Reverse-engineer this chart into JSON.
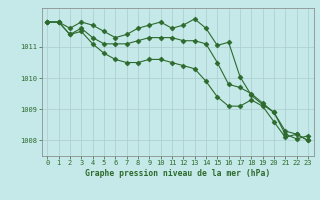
{
  "xlabel": "Graphe pression niveau de la mer (hPa)",
  "x": [
    0,
    1,
    2,
    3,
    4,
    5,
    6,
    7,
    8,
    9,
    10,
    11,
    12,
    13,
    14,
    15,
    16,
    17,
    18,
    19,
    20,
    21,
    22,
    23
  ],
  "line1": [
    1011.8,
    1011.8,
    1011.6,
    1011.8,
    1011.7,
    1011.5,
    1011.3,
    1011.4,
    1011.6,
    1011.7,
    1011.8,
    1011.6,
    1011.7,
    1011.9,
    1011.6,
    1011.05,
    1011.15,
    1010.05,
    1009.45,
    1009.15,
    1008.9,
    1008.2,
    1008.05,
    1008.15
  ],
  "line2": [
    1011.8,
    1011.8,
    1011.4,
    1011.6,
    1011.3,
    1011.1,
    1011.1,
    1011.1,
    1011.2,
    1011.3,
    1011.3,
    1011.3,
    1011.2,
    1011.2,
    1011.1,
    1010.5,
    1009.8,
    1009.7,
    1009.5,
    1009.2,
    1008.9,
    1008.3,
    1008.2,
    1008.0
  ],
  "line3": [
    1011.8,
    1011.8,
    1011.4,
    1011.5,
    1011.1,
    1010.8,
    1010.6,
    1010.5,
    1010.5,
    1010.6,
    1010.6,
    1010.5,
    1010.4,
    1010.3,
    1009.9,
    1009.4,
    1009.1,
    1009.1,
    1009.3,
    1009.1,
    1008.6,
    1008.1,
    1008.2,
    1008.0
  ],
  "line_color": "#2d6a2d",
  "marker": "D",
  "markersize": 2.5,
  "linewidth": 0.8,
  "bg_color": "#c5e8e8",
  "grid_color": "#b0d0d0",
  "axis_color": "#808080",
  "tick_label_color": "#2d6a2d",
  "xlabel_color": "#2d6a2d",
  "ylim": [
    1007.5,
    1012.25
  ],
  "yticks": [
    1008,
    1009,
    1010,
    1011
  ],
  "xlim": [
    -0.5,
    23.5
  ],
  "xticks": [
    0,
    1,
    2,
    3,
    4,
    5,
    6,
    7,
    8,
    9,
    10,
    11,
    12,
    13,
    14,
    15,
    16,
    17,
    18,
    19,
    20,
    21,
    22,
    23
  ],
  "xlabel_fontsize": 5.8,
  "tick_fontsize": 5.0
}
